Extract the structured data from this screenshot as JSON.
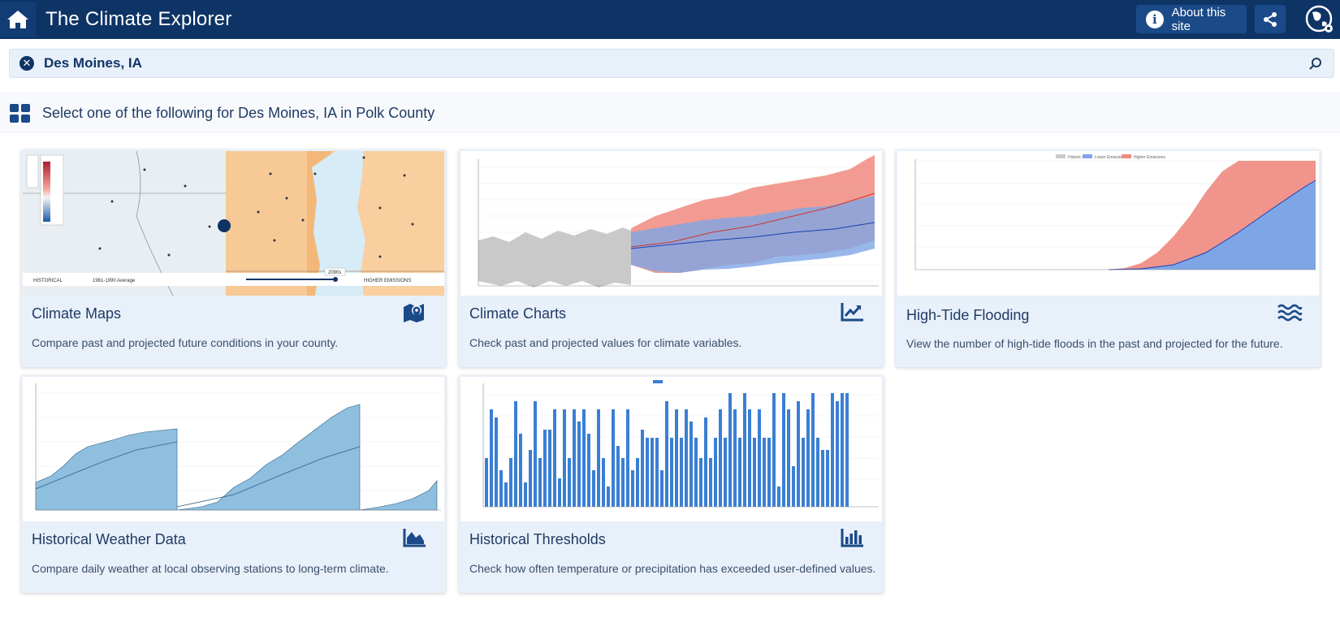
{
  "header": {
    "title": "The Climate Explorer",
    "about_label": "About this site",
    "about_icon": "info-icon",
    "home_icon": "home-icon",
    "share_icon": "share-icon",
    "globe_icon": "globe-settings-icon"
  },
  "search": {
    "location": "Des Moines, IA",
    "clear_icon": "close-circle-icon",
    "search_icon": "search-icon"
  },
  "section": {
    "text": "Select one of the following for Des Moines, IA in Polk County",
    "icon": "grid-icon"
  },
  "cards": [
    {
      "title": "Climate Maps",
      "description": "Compare past and projected future conditions in your county.",
      "icon": "map-marker-icon"
    },
    {
      "title": "Climate Charts",
      "description": "Check past and projected values for climate variables.",
      "icon": "line-chart-icon"
    },
    {
      "title": "High-Tide Flooding",
      "description": "View the number of high-tide floods in the past and projected for the future.",
      "icon": "water-waves-icon"
    },
    {
      "title": "Historical Weather Data",
      "description": "Compare daily weather at local observing stations to long-term climate.",
      "icon": "area-chart-icon"
    },
    {
      "title": "Historical Thresholds",
      "description": "Check how often temperature or precipitation has exceeded user-defined values.",
      "icon": "bar-chart-icon"
    }
  ],
  "thumbnails": {
    "map_slider_left": "HISTORICAL",
    "map_slider_mid": "1961-1990 Average",
    "map_slider_right": "HIGHER EMISSIONS",
    "map_slider_value": "2090s",
    "tide_legend": [
      "Historic",
      "Lower Emissions",
      "Higher Emissions"
    ],
    "colors": {
      "historic": "#c9c9c9",
      "lower": "#7ea6e6",
      "higher": "#f08a80",
      "weather": "#8fbfdf",
      "bars": "#3a7fd4"
    }
  }
}
